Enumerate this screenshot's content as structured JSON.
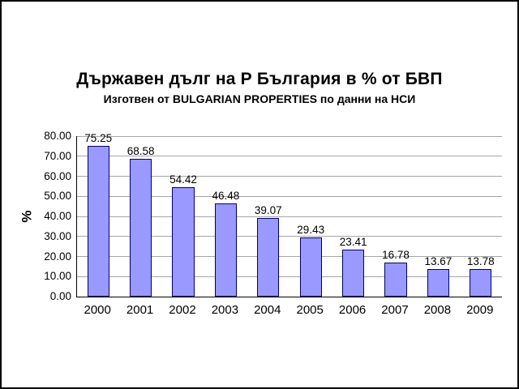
{
  "page": {
    "background": "#ffffff",
    "frame_border_color": "#000000"
  },
  "chart_data": {
    "type": "bar",
    "title": "Държавен дълг на Р България в % от БВП",
    "subtitle": "Изготвен от BULGARIAN PROPERTIES по данни на НСИ",
    "categories": [
      "2000",
      "2001",
      "2002",
      "2003",
      "2004",
      "2005",
      "2006",
      "2007",
      "2008",
      "2009"
    ],
    "values": [
      75.25,
      68.58,
      54.42,
      46.48,
      39.07,
      29.43,
      23.41,
      16.78,
      13.67,
      13.78
    ],
    "value_labels": [
      "75.25",
      "68.58",
      "54.42",
      "46.48",
      "39.07",
      "29.43",
      "23.41",
      "16.78",
      "13.67",
      "13.78"
    ],
    "xlabel": "",
    "ylabel": "%",
    "ylim": [
      0,
      80
    ],
    "ytick_step": 10,
    "ytick_labels": [
      "0.00",
      "10.00",
      "20.00",
      "30.00",
      "40.00",
      "50.00",
      "60.00",
      "70.00",
      "80.00"
    ],
    "grid": true,
    "legend": "none",
    "bar_fill": "#9999ff",
    "bar_border": "#000066",
    "grid_color": "#a6a6a6",
    "axis_color": "#000000"
  }
}
